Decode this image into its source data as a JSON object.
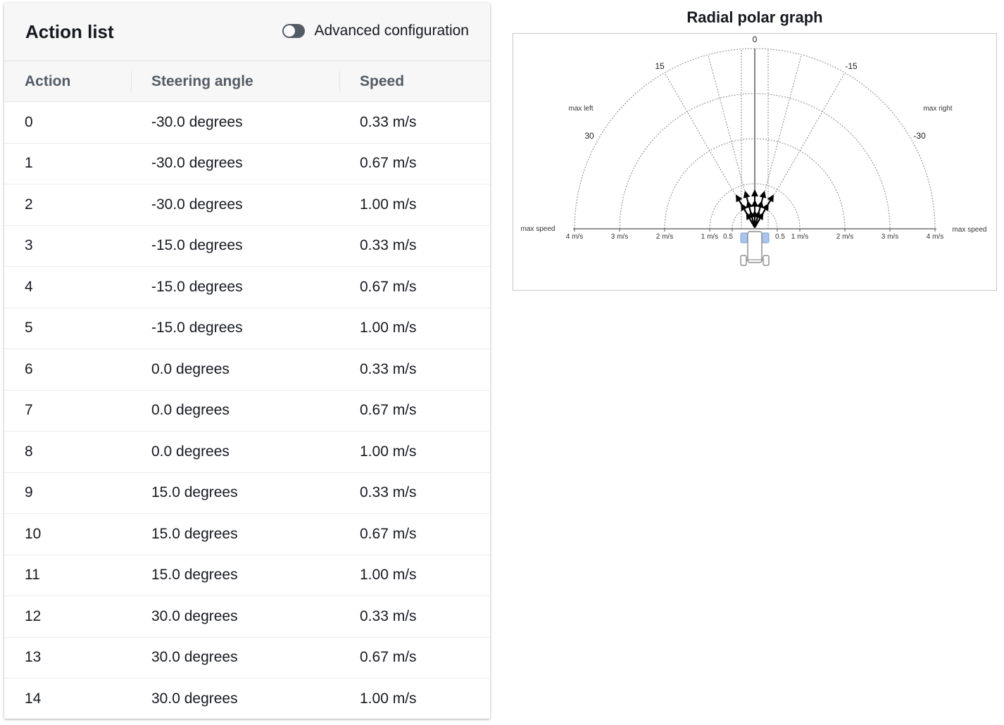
{
  "action_list": {
    "title": "Action list",
    "toggle": {
      "label": "Advanced configuration",
      "enabled": false
    },
    "columns": [
      "Action",
      "Steering angle",
      "Speed"
    ],
    "rows": [
      {
        "action": "0",
        "steering": "-30.0 degrees",
        "speed": "0.33 m/s"
      },
      {
        "action": "1",
        "steering": "-30.0 degrees",
        "speed": "0.67 m/s"
      },
      {
        "action": "2",
        "steering": "-30.0 degrees",
        "speed": "1.00 m/s"
      },
      {
        "action": "3",
        "steering": "-15.0 degrees",
        "speed": "0.33 m/s"
      },
      {
        "action": "4",
        "steering": "-15.0 degrees",
        "speed": "0.67 m/s"
      },
      {
        "action": "5",
        "steering": "-15.0 degrees",
        "speed": "1.00 m/s"
      },
      {
        "action": "6",
        "steering": "0.0 degrees",
        "speed": "0.33 m/s"
      },
      {
        "action": "7",
        "steering": "0.0 degrees",
        "speed": "0.67 m/s"
      },
      {
        "action": "8",
        "steering": "0.0 degrees",
        "speed": "1.00 m/s"
      },
      {
        "action": "9",
        "steering": "15.0 degrees",
        "speed": "0.33 m/s"
      },
      {
        "action": "10",
        "steering": "15.0 degrees",
        "speed": "0.67 m/s"
      },
      {
        "action": "11",
        "steering": "15.0 degrees",
        "speed": "1.00 m/s"
      },
      {
        "action": "12",
        "steering": "30.0 degrees",
        "speed": "0.33 m/s"
      },
      {
        "action": "13",
        "steering": "30.0 degrees",
        "speed": "0.67 m/s"
      },
      {
        "action": "14",
        "steering": "30.0 degrees",
        "speed": "1.00 m/s"
      }
    ]
  },
  "graph": {
    "title": "Radial polar graph",
    "angle_labels": [
      "0",
      "15",
      "-15",
      "30",
      "-30"
    ],
    "max_left_label": "max left",
    "max_right_label": "max right",
    "max_speed_label": "max speed",
    "left_speed_ticks": [
      "4 m/s",
      "3 m/s",
      "2 m/s",
      "1 m/s",
      "0.5"
    ],
    "right_speed_ticks": [
      "0.5",
      "1 m/s",
      "2 m/s",
      "3 m/s",
      "4 m/s"
    ],
    "max_speed": 4,
    "max_steering": 30,
    "spokes_deg": [
      30,
      15,
      0,
      -15,
      -30
    ],
    "actions": [
      {
        "angle": -30,
        "speed": 0.33
      },
      {
        "angle": -30,
        "speed": 0.67
      },
      {
        "angle": -30,
        "speed": 1.0
      },
      {
        "angle": -15,
        "speed": 0.33
      },
      {
        "angle": -15,
        "speed": 0.67
      },
      {
        "angle": -15,
        "speed": 1.0
      },
      {
        "angle": 0,
        "speed": 0.33
      },
      {
        "angle": 0,
        "speed": 0.67
      },
      {
        "angle": 0,
        "speed": 1.0
      },
      {
        "angle": 15,
        "speed": 0.33
      },
      {
        "angle": 15,
        "speed": 0.67
      },
      {
        "angle": 15,
        "speed": 1.0
      },
      {
        "angle": 30,
        "speed": 0.33
      },
      {
        "angle": 30,
        "speed": 0.67
      },
      {
        "angle": 30,
        "speed": 1.0
      }
    ],
    "colors": {
      "arrow": "#000000",
      "grid": "#9a9a9a",
      "car_highlight": "#aac4ef"
    }
  }
}
